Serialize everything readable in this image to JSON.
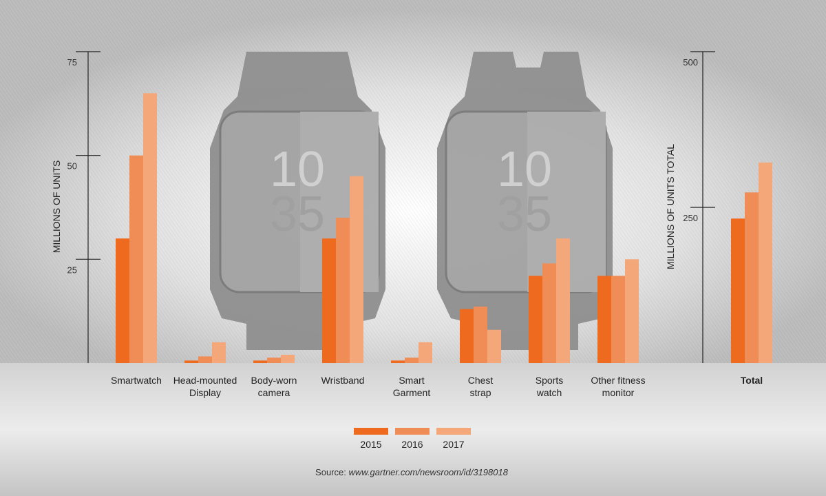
{
  "chart_data": {
    "type": "bar",
    "categories": [
      "Smartwatch",
      "Head-mounted Display",
      "Body-worn camera",
      "Wristband",
      "Smart Garment",
      "Chest strap",
      "Sports watch",
      "Other fitness monitor"
    ],
    "category_lines": [
      [
        "Smartwatch"
      ],
      [
        "Head-mounted",
        "Display"
      ],
      [
        "Body-worn",
        "camera"
      ],
      [
        "Wristband"
      ],
      [
        "Smart",
        "Garment"
      ],
      [
        "Chest",
        "strap"
      ],
      [
        "Sports",
        "watch"
      ],
      [
        "Other fitness",
        "monitor"
      ]
    ],
    "series": [
      {
        "name": "2015",
        "color": "#EE6A1F",
        "values": [
          30,
          0.6,
          0.6,
          30,
          0.6,
          13,
          21,
          21
        ]
      },
      {
        "name": "2016",
        "color": "#F08C55",
        "values": [
          50,
          1.6,
          1.3,
          35,
          1.3,
          13.6,
          24,
          21
        ]
      },
      {
        "name": "2017",
        "color": "#F4A87A",
        "values": [
          65,
          5,
          2,
          45,
          5,
          8,
          30,
          25
        ]
      }
    ],
    "ylabel": "MILLIONS OF UNITS",
    "yticks": [
      25,
      50,
      75
    ],
    "ylim": [
      0,
      75
    ],
    "total": {
      "category": "Total",
      "values": [
        232,
        274,
        322
      ],
      "ylabel": "MILLIONS OF UNITS TOTAL",
      "yticks": [
        250,
        500
      ],
      "ylim": [
        0,
        500
      ]
    },
    "legend_position": "bottom-center",
    "grid": false
  },
  "source": {
    "prefix": "Source:",
    "link": "www.gartner.com/newsroom/id/3198018"
  }
}
